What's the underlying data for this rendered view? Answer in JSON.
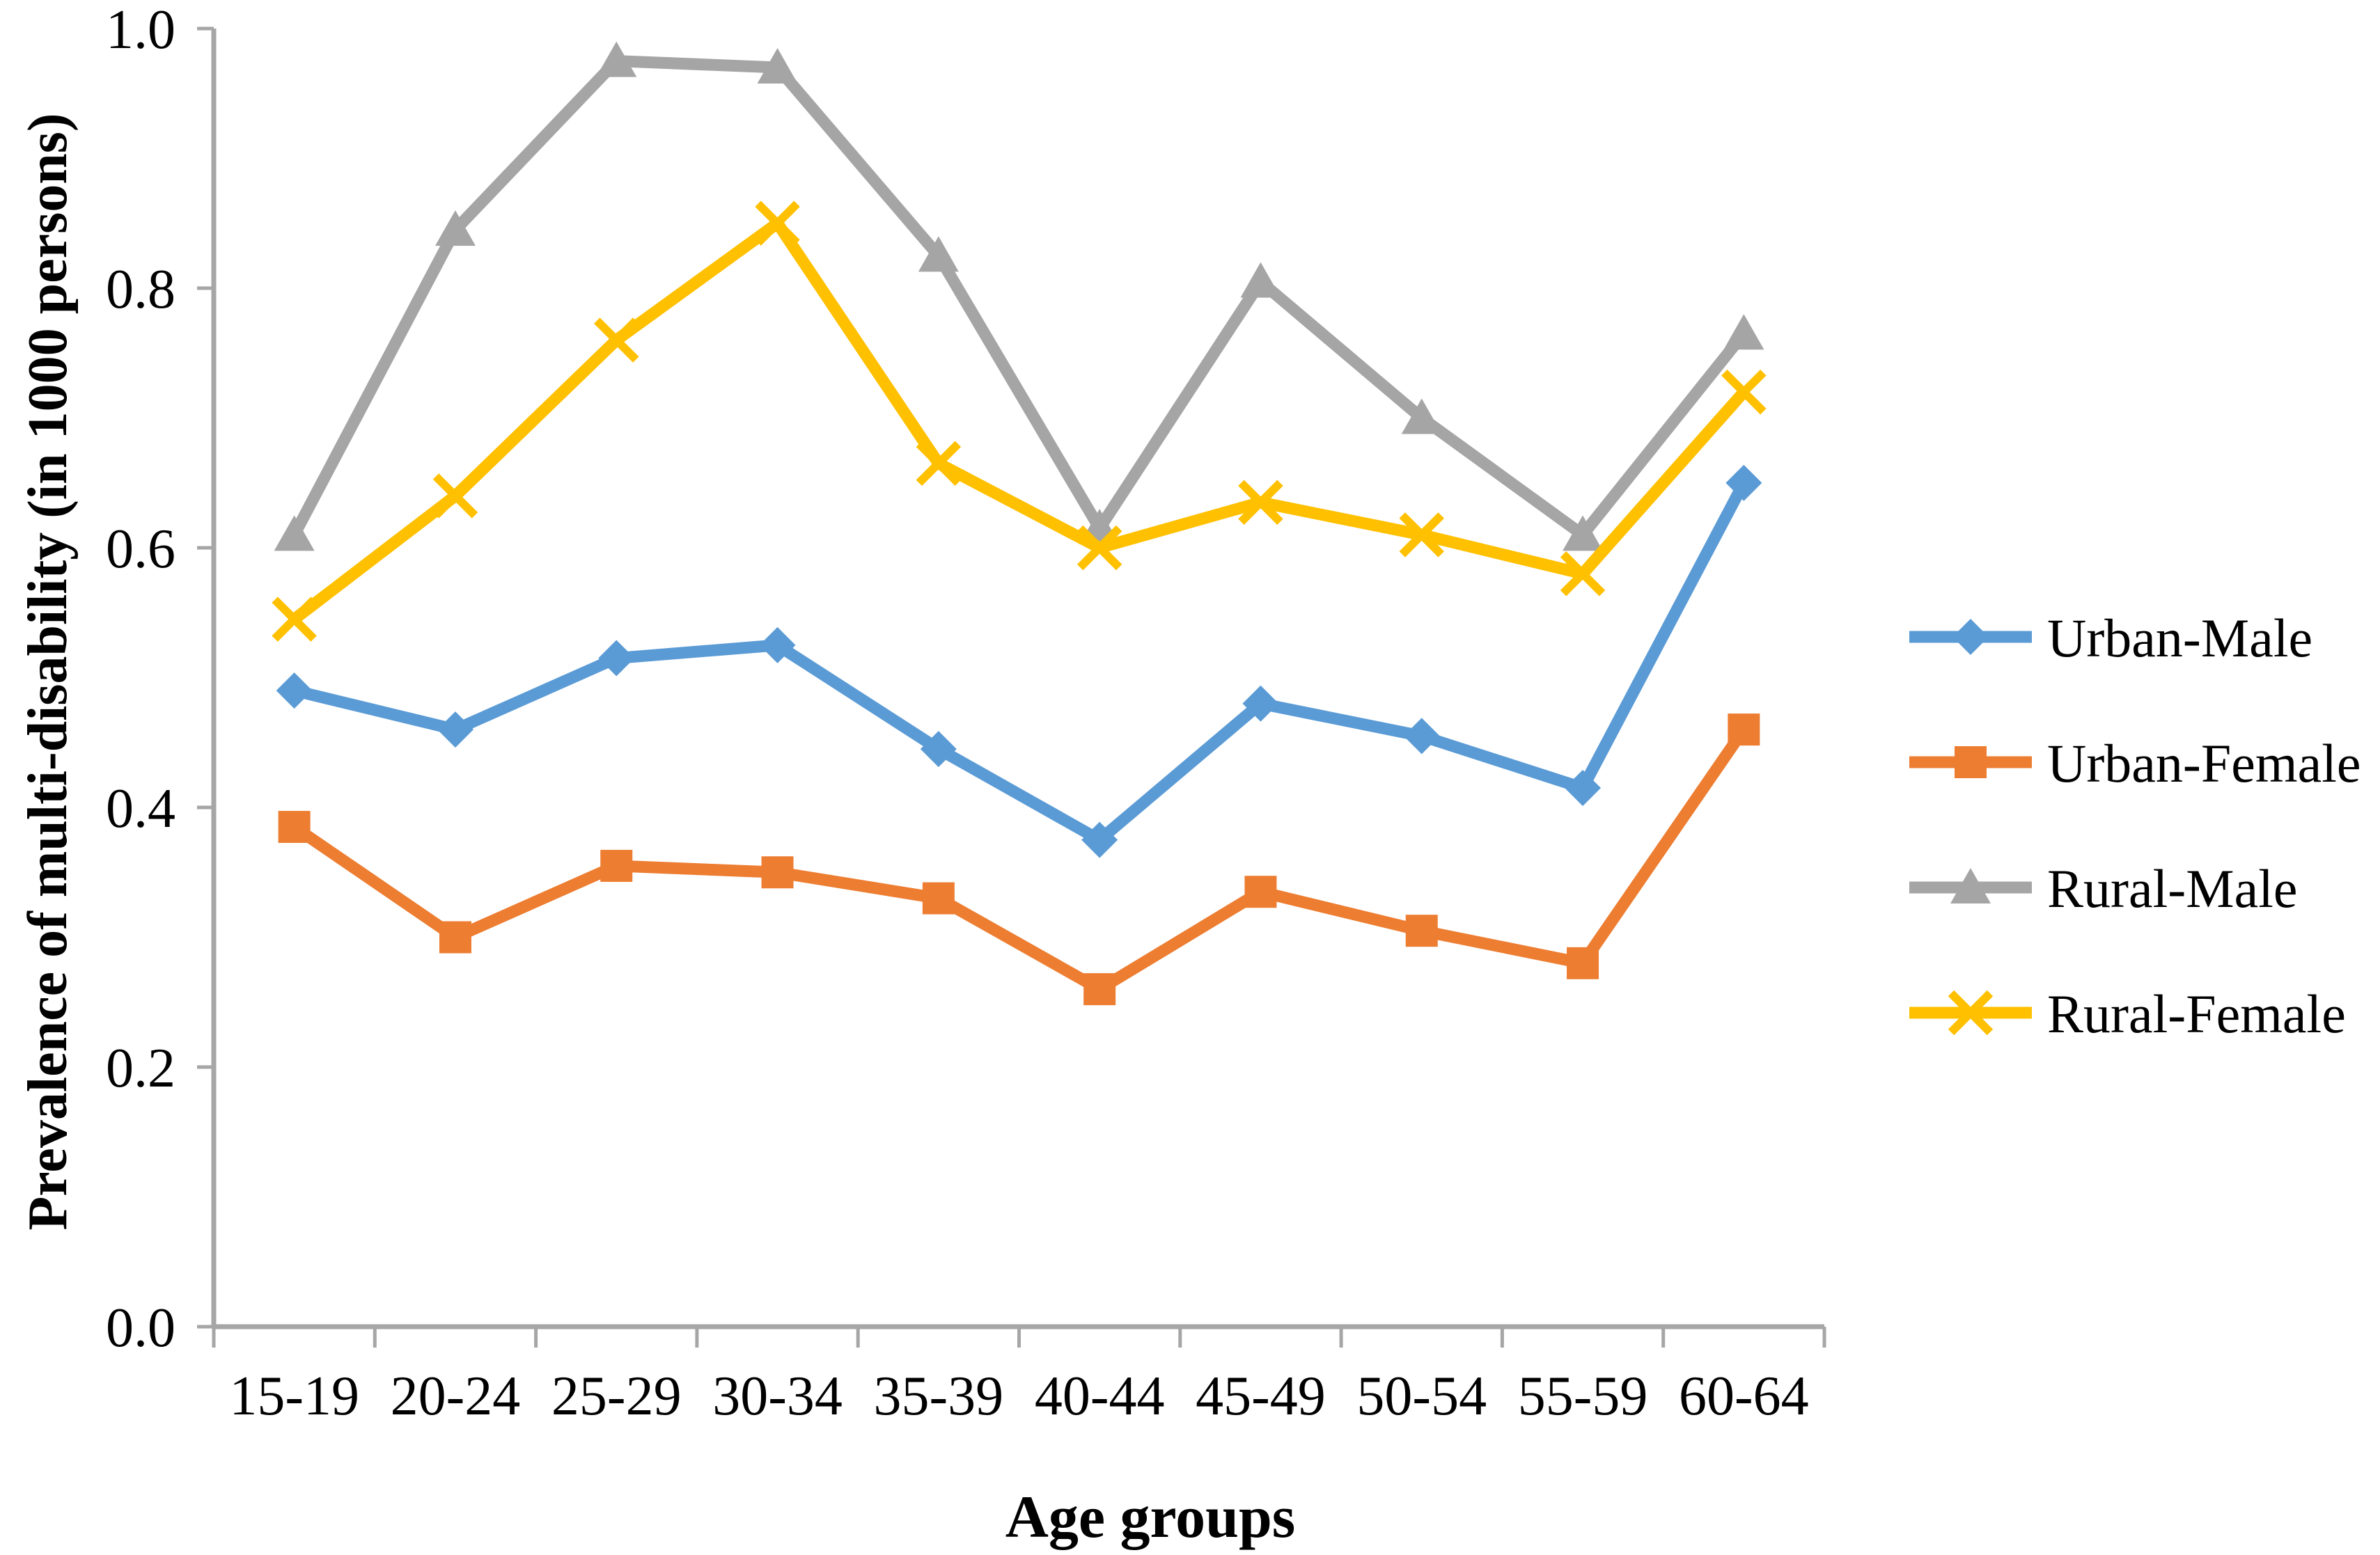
{
  "chart_data": {
    "type": "line",
    "title": "",
    "xlabel": "Age groups",
    "ylabel": "Prevalence of multi-disability (in 1000 persons)",
    "categories": [
      "15-19",
      "20-24",
      "25-29",
      "30-34",
      "35-39",
      "40-44",
      "45-49",
      "50-54",
      "55-59",
      "60-64"
    ],
    "ylim": [
      0.0,
      1.0
    ],
    "yticks": [
      0.0,
      0.2,
      0.4,
      0.6,
      0.8,
      1.0
    ],
    "ytick_labels": [
      "0.0",
      "0.2",
      "0.4",
      "0.6",
      "0.8",
      "1.0"
    ],
    "grid": false,
    "legend_position": "right",
    "axis_color": "#A6A6A6",
    "text_color": "#000000",
    "series": [
      {
        "name": "Urban-Male",
        "color": "#5B9BD5",
        "marker": "diamond",
        "values": [
          0.49,
          0.46,
          0.515,
          0.525,
          0.445,
          0.375,
          0.48,
          0.455,
          0.415,
          0.65
        ]
      },
      {
        "name": "Urban-Female",
        "color": "#ED7D31",
        "marker": "square",
        "values": [
          0.385,
          0.3,
          0.355,
          0.35,
          0.33,
          0.26,
          0.335,
          0.305,
          0.28,
          0.46
        ]
      },
      {
        "name": "Rural-Male",
        "color": "#A5A5A5",
        "marker": "triangle",
        "values": [
          0.61,
          0.845,
          0.975,
          0.97,
          0.825,
          0.615,
          0.805,
          0.7,
          0.61,
          0.765
        ]
      },
      {
        "name": "Rural-Female",
        "color": "#FFC000",
        "marker": "x",
        "values": [
          0.545,
          0.64,
          0.76,
          0.85,
          0.665,
          0.6,
          0.635,
          0.61,
          0.58,
          0.72
        ]
      }
    ]
  }
}
